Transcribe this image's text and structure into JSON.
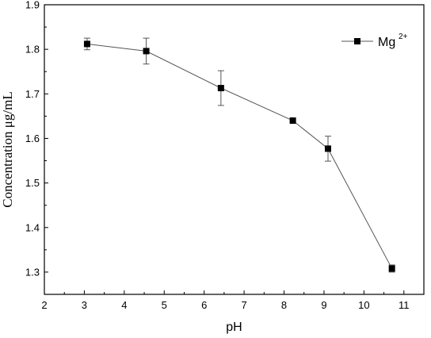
{
  "chart_data": {
    "type": "line",
    "xlabel": "pH",
    "ylabel": "Concentration μg/mL",
    "xlim": [
      2,
      11.5
    ],
    "ylim": [
      1.25,
      1.9
    ],
    "xticks": [
      "2",
      "3",
      "4",
      "5",
      "6",
      "7",
      "8",
      "9",
      "10",
      "11"
    ],
    "yticks": [
      "1.3",
      "1.4",
      "1.5",
      "1.6",
      "1.7",
      "1.8",
      "1.9"
    ],
    "grid": false,
    "legend_position": "top-right",
    "series": [
      {
        "name": "Mg",
        "name_superscript": "2+",
        "color": "#000000",
        "line_color": "#555555",
        "marker": "square",
        "x": [
          3.07,
          4.55,
          6.42,
          8.22,
          9.1,
          10.7
        ],
        "y": [
          1.812,
          1.796,
          1.713,
          1.64,
          1.577,
          1.308
        ],
        "error": [
          0.013,
          0.029,
          0.039,
          0.0,
          0.028,
          0.008
        ]
      }
    ]
  }
}
